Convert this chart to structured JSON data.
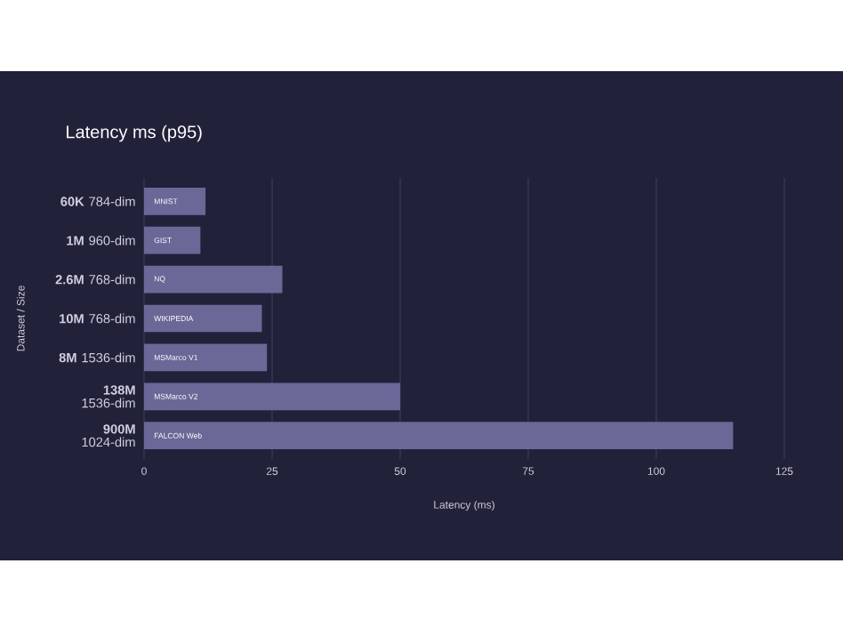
{
  "chart_data": {
    "type": "bar",
    "orientation": "horizontal",
    "title": "Latency ms (p95)",
    "xlabel": "Latency (ms)",
    "ylabel": "Dataset / Size",
    "categories": [
      "**60K** 784-dim",
      "**1M** 960-dim",
      "**2.6M** 768-dim",
      "**10M** 768-dim",
      "**8M** 1536-dim",
      "**138M** 1536-dim",
      "**900M** 1024-dim"
    ],
    "values": [
      12,
      11,
      27,
      23,
      24,
      50,
      115
    ],
    "color": "#6b6898",
    "xlim": [
      0,
      125
    ],
    "xticks": [
      0,
      25,
      50,
      75,
      100,
      125
    ],
    "grid": "x",
    "annotations": [
      "MNIST",
      "GIST",
      "NQ",
      "WIKIPEDIA",
      "MSMarco V1",
      "MSMarco V2",
      "FALCON Web"
    ]
  }
}
